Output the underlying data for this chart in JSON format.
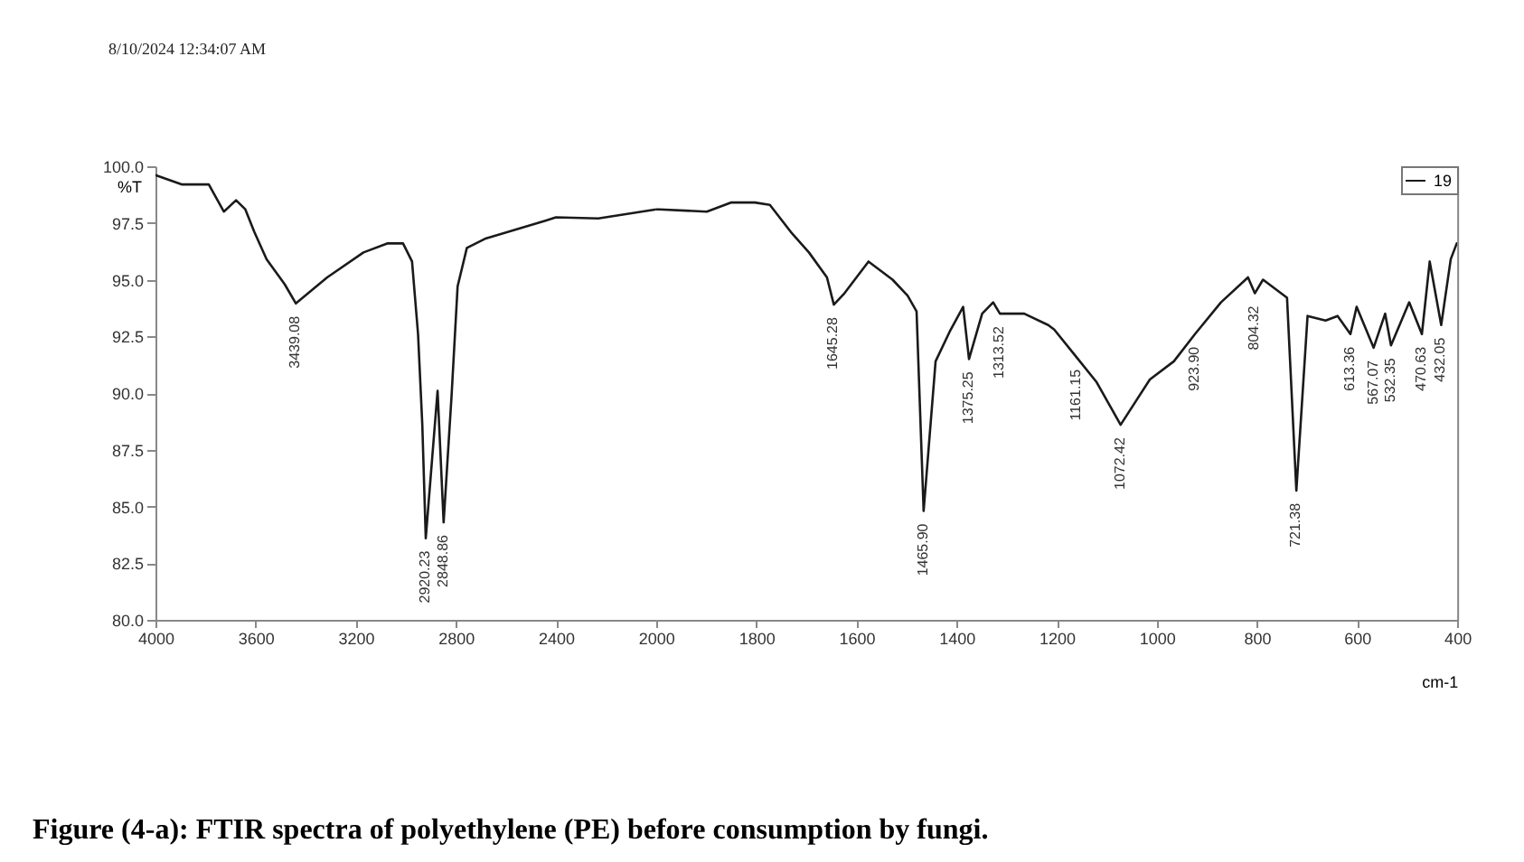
{
  "chart_data": [
    {
      "type": "line",
      "title": "Figure (4-a): FTIR spectra of polyethylene (PE) before consumption by fungi.",
      "ylabel": "%T",
      "xlim": [
        4000,
        2000
      ],
      "xticks": [
        4000,
        3600,
        3200,
        2800,
        2400,
        2000
      ],
      "ylim": [
        80,
        100
      ],
      "yticks": [
        {
          "value": 80,
          "label": "80.0"
        },
        {
          "value": 82.5,
          "label": "82.5"
        },
        {
          "value": 85,
          "label": "85.0"
        },
        {
          "value": 87.5,
          "label": "87.5"
        },
        {
          "value": 90,
          "label": "90.0"
        },
        {
          "value": 92.5,
          "label": "92.5"
        },
        {
          "value": 95,
          "label": "95.0"
        },
        {
          "value": 97.5,
          "label": "97.5"
        },
        {
          "value": 100,
          "label": "100.0"
        }
      ],
      "grid": false,
      "marker": "none",
      "line_style": "solid",
      "series": [
        {
          "color": "#1a1a1a",
          "x": [
            3998,
            3896,
            3787,
            3727,
            3678,
            3641,
            3605,
            3556,
            3484,
            3439.08,
            3314,
            3169,
            3072,
            3011,
            2975,
            2951,
            2934,
            2920.23,
            2873,
            2848.86,
            2817,
            2793,
            2756,
            2684,
            2563,
            2442,
            2400,
            2231,
            2000
          ],
          "values": [
            99.6,
            99.2,
            99.2,
            98.0,
            98.5,
            98.1,
            97.1,
            95.9,
            94.8,
            93.95,
            95.1,
            96.2,
            96.6,
            96.6,
            95.8,
            92.6,
            88.6,
            83.6,
            90.1,
            84.3,
            89.9,
            94.7,
            96.4,
            96.8,
            97.2,
            97.6,
            97.75,
            97.7,
            98.1
          ]
        }
      ],
      "annotations": [
        "8/10/2024 12:34:07 AM",
        {
          "text": "3439.08",
          "x": 3439.08,
          "y": 93.95
        },
        {
          "text": "2920.23",
          "x": 2920.23,
          "y": 83.6
        },
        {
          "text": "2848.86",
          "x": 2848.86,
          "y": 84.3
        }
      ]
    },
    {
      "type": "line",
      "xlabel": "cm-1",
      "xlim": [
        2000,
        400
      ],
      "xticks": [
        {
          "value": 2000,
          "label": null
        },
        1800,
        1600,
        1400,
        1200,
        1000,
        800,
        600,
        400
      ],
      "ylim": [
        80,
        100
      ],
      "tick_labels": "x",
      "grid": false,
      "legend": "top right",
      "marker": "none",
      "line_style": "solid",
      "series": [
        {
          "name": "19",
          "color": "#1a1a1a",
          "x": [
            2000,
            1994,
            1899,
            1851,
            1803,
            1773,
            1731,
            1695,
            1659,
            1645.28,
            1624,
            1576,
            1528,
            1498,
            1480,
            1465.9,
            1442,
            1414,
            1387,
            1375.25,
            1349,
            1327,
            1313.52,
            1265,
            1217,
            1205,
            1161.15,
            1121,
            1072.42,
            1014,
            966,
            923.9,
            872,
            818,
            804.32,
            788,
            740,
            721.38,
            699,
            663,
            639,
            613.36,
            601,
            567.07,
            544,
            532.35,
            496,
            470.63,
            455,
            432.05,
            413,
            401
          ],
          "values": [
            98.1,
            98.1,
            98.0,
            98.4,
            98.4,
            98.3,
            97.1,
            96.2,
            95.1,
            93.9,
            94.4,
            95.8,
            95.0,
            94.3,
            93.6,
            84.8,
            91.4,
            92.7,
            93.8,
            91.5,
            93.5,
            94.0,
            93.5,
            93.5,
            93.0,
            92.8,
            91.6,
            90.5,
            88.6,
            90.6,
            91.4,
            92.6,
            94.0,
            95.1,
            94.4,
            95.0,
            94.2,
            85.7,
            93.4,
            93.2,
            93.4,
            92.6,
            93.8,
            92.0,
            93.5,
            92.1,
            94.0,
            92.6,
            95.8,
            93.0,
            95.9,
            96.6
          ]
        }
      ],
      "annotations": [
        {
          "text": "1645.28",
          "x": 1645.28,
          "y": 93.9
        },
        {
          "text": "1465.90",
          "x": 1465.9,
          "y": 84.8
        },
        {
          "text": "1375.25",
          "x": 1375.25,
          "y": 91.5
        },
        {
          "text": "1313.52",
          "x": 1313.52,
          "y": 93.5
        },
        {
          "text": "1161.15",
          "x": 1161.15,
          "y": 91.6
        },
        {
          "text": "1072.42",
          "x": 1072.42,
          "y": 88.6
        },
        {
          "text": "923.90",
          "x": 923.9,
          "y": 92.6
        },
        {
          "text": "804.32",
          "x": 804.32,
          "y": 94.4
        },
        {
          "text": "721.38",
          "x": 721.38,
          "y": 85.7
        },
        {
          "text": "613.36",
          "x": 613.36,
          "y": 92.6
        },
        {
          "text": "567.07",
          "x": 567.07,
          "y": 92.0
        },
        {
          "text": "532.35",
          "x": 532.35,
          "y": 92.1
        },
        {
          "text": "470.63",
          "x": 470.63,
          "y": 92.6
        },
        {
          "text": "432.05",
          "x": 432.05,
          "y": 93.0
        }
      ]
    }
  ]
}
